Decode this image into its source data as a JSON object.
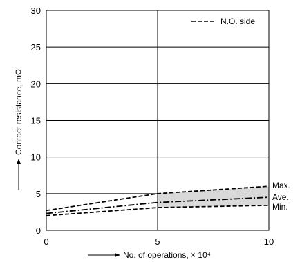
{
  "chart_data": {
    "type": "line",
    "xlabel": "No. of operations, × 10⁴",
    "ylabel": "Contact resistance, mΩ",
    "xlim": [
      0,
      10
    ],
    "ylim": [
      0,
      30
    ],
    "xticks": [
      0,
      5,
      10
    ],
    "yticks": [
      0,
      5,
      10,
      15,
      20,
      25,
      30
    ],
    "grid": true,
    "legend": {
      "position": "top-right",
      "entries": [
        {
          "label": "N.O. side",
          "style": "dashed"
        }
      ]
    },
    "series": [
      {
        "name": "Max.",
        "style": "dashed",
        "x": [
          0,
          5,
          10
        ],
        "y": [
          2.7,
          5.0,
          6.0
        ]
      },
      {
        "name": "Ave.",
        "style": "dash-dot",
        "x": [
          0,
          5,
          10
        ],
        "y": [
          2.3,
          3.8,
          4.5
        ]
      },
      {
        "name": "Min.",
        "style": "dashed",
        "x": [
          0,
          5,
          10
        ],
        "y": [
          2.0,
          3.1,
          3.4
        ]
      }
    ],
    "band": {
      "between": [
        "Min.",
        "Max.",
        "from x = 5"
      ],
      "color": "#d9d9d9"
    }
  }
}
